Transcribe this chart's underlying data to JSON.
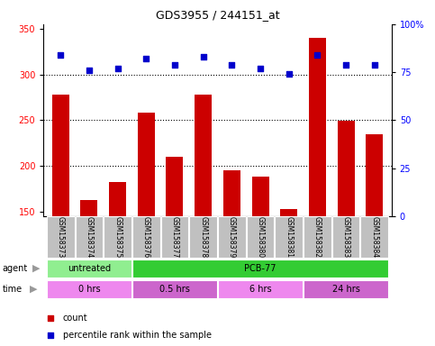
{
  "title": "GDS3955 / 244151_at",
  "samples": [
    "GSM158373",
    "GSM158374",
    "GSM158375",
    "GSM158376",
    "GSM158377",
    "GSM158378",
    "GSM158379",
    "GSM158380",
    "GSM158381",
    "GSM158382",
    "GSM158383",
    "GSM158384"
  ],
  "counts": [
    278,
    163,
    182,
    258,
    210,
    278,
    195,
    188,
    153,
    340,
    249,
    235
  ],
  "percentiles": [
    84,
    76,
    77,
    82,
    79,
    83,
    79,
    77,
    74,
    84,
    79,
    79
  ],
  "bar_color": "#cc0000",
  "dot_color": "#0000cc",
  "ylim_left": [
    145,
    355
  ],
  "ylim_right": [
    0,
    100
  ],
  "yticks_left": [
    150,
    200,
    250,
    300,
    350
  ],
  "yticks_right": [
    0,
    25,
    50,
    75,
    100
  ],
  "agent_groups": [
    {
      "label": "untreated",
      "start": 0,
      "end": 3,
      "color": "#90ee90"
    },
    {
      "label": "PCB-77",
      "start": 3,
      "end": 12,
      "color": "#33cc33"
    }
  ],
  "time_groups": [
    {
      "label": "0 hrs",
      "start": 0,
      "end": 3,
      "color": "#ee88ee"
    },
    {
      "label": "0.5 hrs",
      "start": 3,
      "end": 6,
      "color": "#cc66cc"
    },
    {
      "label": "6 hrs",
      "start": 6,
      "end": 9,
      "color": "#ee88ee"
    },
    {
      "label": "24 hrs",
      "start": 9,
      "end": 12,
      "color": "#cc66cc"
    }
  ],
  "grid_dotted_values": [
    200,
    250,
    300
  ],
  "bg_color": "#ffffff",
  "plot_bg": "#ffffff",
  "tick_label_bg": "#c0c0c0",
  "bar_bottom": 145,
  "legend_items": [
    {
      "label": "count",
      "color": "#cc0000"
    },
    {
      "label": "percentile rank within the sample",
      "color": "#0000cc"
    }
  ]
}
